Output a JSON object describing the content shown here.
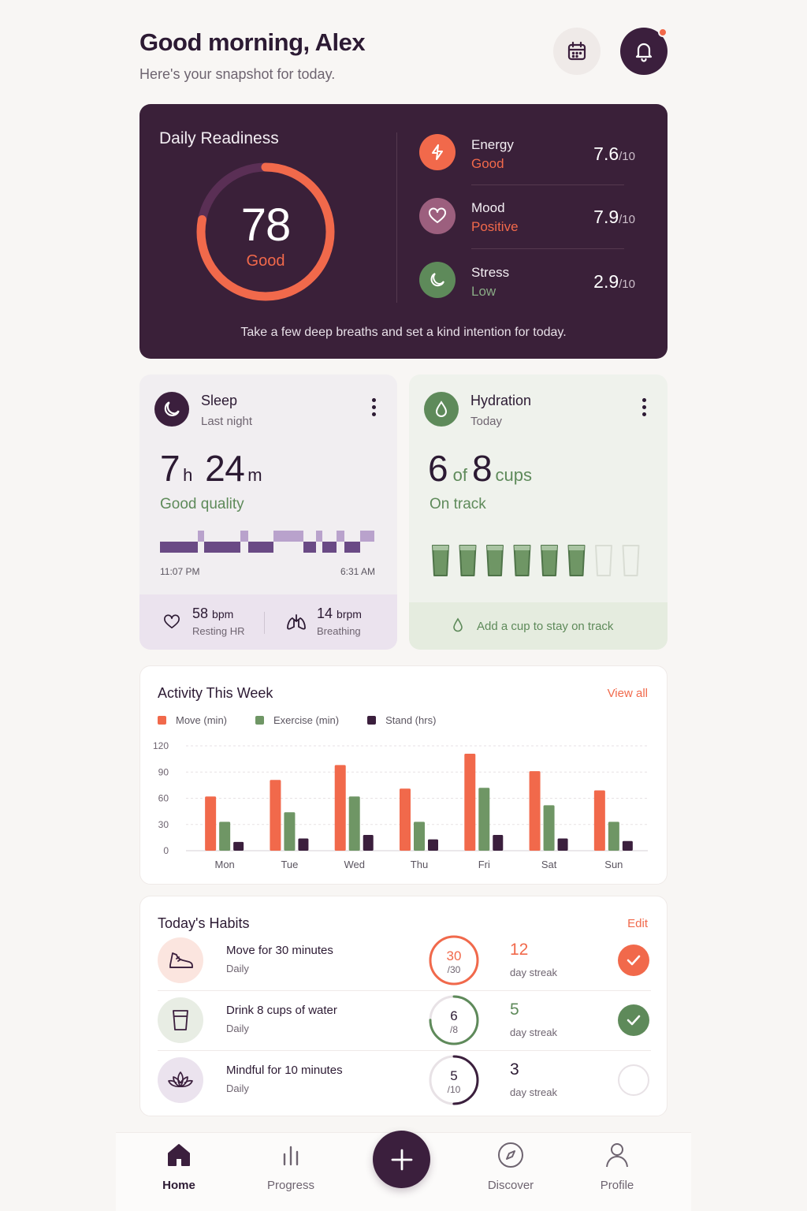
{
  "header": {
    "greeting": "Good morning, Alex",
    "subtitle": "Here's your snapshot for today."
  },
  "readiness": {
    "title": "Daily Readiness",
    "score": "78",
    "score_fraction": 0.78,
    "score_label": "Good",
    "quote": "Take a few deep breaths and set a kind intention for today.",
    "metrics": [
      {
        "name": "Energy",
        "state": "Good",
        "value": "7.6",
        "max": "/10",
        "icon": "bolt-icon",
        "color": "#f1694b"
      },
      {
        "name": "Mood",
        "state": "Positive",
        "value": "7.9",
        "max": "/10",
        "icon": "heart-icon",
        "color": "#9c5f7e"
      },
      {
        "name": "Stress",
        "state": "Low",
        "value": "2.9",
        "max": "/10",
        "icon": "moon-icon",
        "color": "#5e8a5a"
      }
    ]
  },
  "sleep": {
    "title": "Sleep",
    "subtitle": "Last night",
    "hours": "7",
    "h_unit": "h",
    "minutes": "24",
    "m_unit": "m",
    "quality": "Good quality",
    "start_time": "11:07 PM",
    "end_time": "6:31 AM",
    "heart_rate": "58",
    "heart_rate_unit": "bpm",
    "heart_rate_label": "Resting HR",
    "breathing": "14",
    "breathing_unit": "brpm",
    "breathing_label": "Breathing"
  },
  "hydration": {
    "title": "Hydration",
    "subtitle": "Today",
    "current": "6",
    "of": "of",
    "goal": "8",
    "unit": "cups",
    "status": "On track",
    "filled_cups": 6,
    "total_cups": 8,
    "footer": "Add a cup to stay on track"
  },
  "activity": {
    "title": "Activity This Week",
    "link": "View all"
  },
  "chart_data": {
    "type": "bar",
    "title": "Activity This Week",
    "categories": [
      "Mon",
      "Tue",
      "Wed",
      "Thu",
      "Fri",
      "Sat",
      "Sun"
    ],
    "series": [
      {
        "name": "Move (min)",
        "color": "#f1694b",
        "values": [
          62,
          81,
          98,
          71,
          111,
          91,
          69
        ]
      },
      {
        "name": "Exercise (min)",
        "color": "#6f9665",
        "values": [
          33,
          44,
          62,
          33,
          72,
          52,
          33
        ]
      },
      {
        "name": "Stand (hrs)",
        "color": "#3b1f3d",
        "values": [
          10,
          14,
          18,
          13,
          18,
          14,
          11
        ]
      }
    ],
    "yticks": [
      "0",
      "30",
      "60",
      "90",
      "120"
    ],
    "ylim": [
      0,
      120
    ],
    "grid": true,
    "legend": "top-left"
  },
  "habits": {
    "title": "Today's Habits",
    "edit": "Edit",
    "items": [
      {
        "name": "Move for 30 minutes",
        "freq": "Daily",
        "value": "30",
        "max": "/30",
        "progress": 1.0,
        "streak": "12",
        "streak_label": "day streak",
        "done": true,
        "color": "#f1694b",
        "icon": "sneaker-icon"
      },
      {
        "name": "Drink 8 cups of water",
        "freq": "Daily",
        "value": "6",
        "max": "/8",
        "progress": 0.75,
        "streak": "5",
        "streak_label": "day streak",
        "done": true,
        "color": "#5e8a5a",
        "icon": "glass-icon"
      },
      {
        "name": "Mindful for 10 minutes",
        "freq": "Daily",
        "value": "5",
        "max": "/10",
        "progress": 0.5,
        "streak": "3",
        "streak_label": "day streak",
        "done": false,
        "color": "#3b1f3d",
        "icon": "lotus-icon"
      }
    ]
  },
  "nav": {
    "items": [
      {
        "label": "Home",
        "icon": "home-icon"
      },
      {
        "label": "Progress",
        "icon": "bar-chart-icon"
      },
      {
        "label": "Discover",
        "icon": "compass-icon"
      },
      {
        "label": "Profile",
        "icon": "user-icon"
      }
    ],
    "add": "add-icon"
  }
}
